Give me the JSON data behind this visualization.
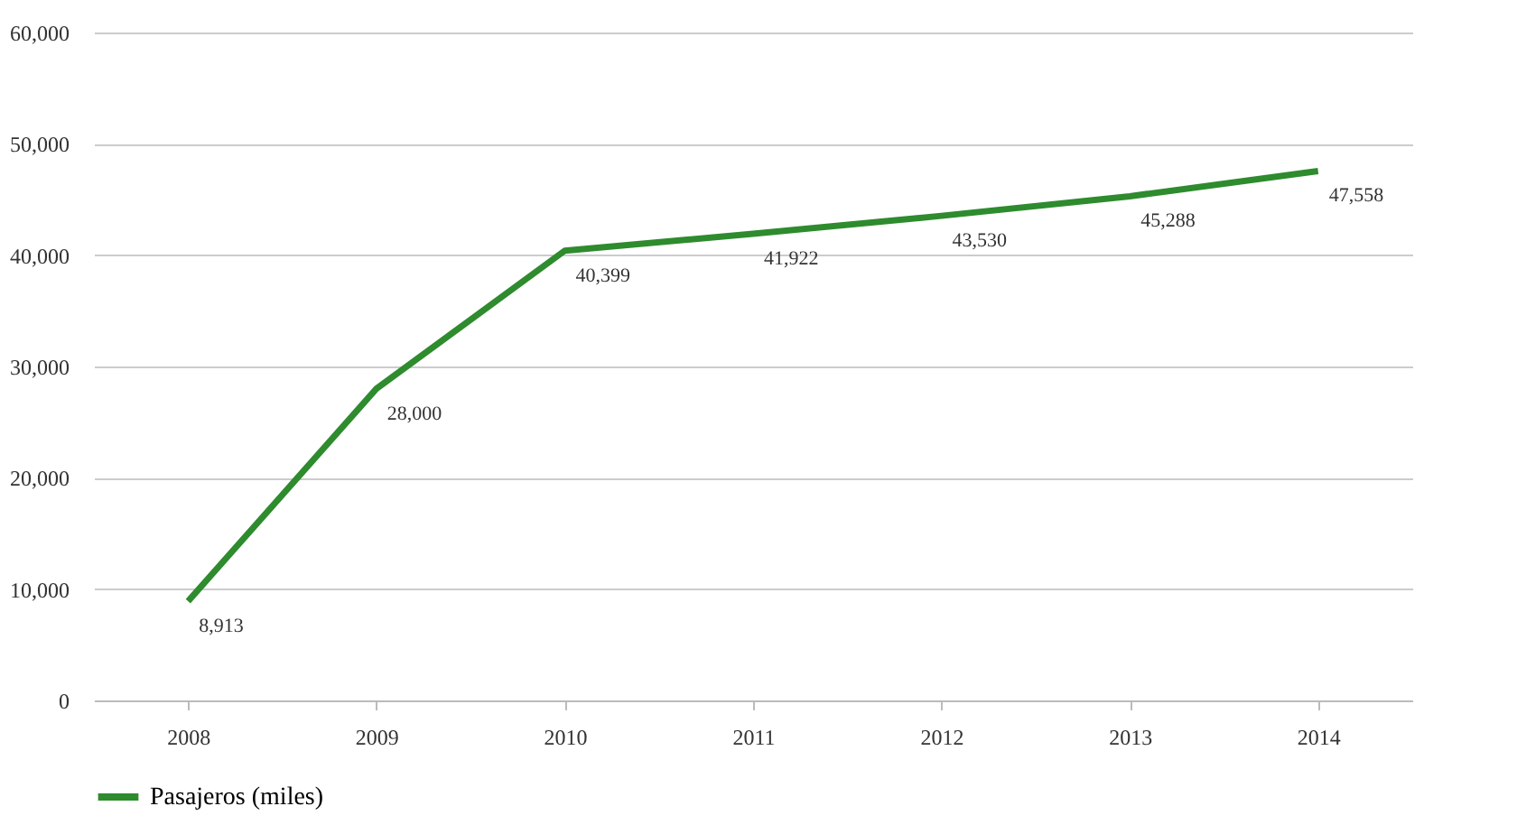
{
  "chart_data": {
    "type": "line",
    "categories": [
      "2008",
      "2009",
      "2010",
      "2011",
      "2012",
      "2013",
      "2014"
    ],
    "series": [
      {
        "name": "Pasajeros (miles)",
        "color": "#2e8b2e",
        "values": [
          8913,
          28000,
          40399,
          41922,
          43530,
          45288,
          47558
        ],
        "value_labels": [
          "8,913",
          "28,000",
          "40,399",
          "41,922",
          "43,530",
          "45,288",
          "47,558"
        ]
      }
    ],
    "ylim": [
      0,
      60000
    ],
    "yticks": [
      0,
      {
        "value": 10000,
        "label": "10,000"
      },
      {
        "value": 20000,
        "label": "20,000"
      },
      {
        "value": 30000,
        "label": "30,000"
      },
      {
        "value": 40000,
        "label": "40,000"
      },
      {
        "value": 50000,
        "label": "50,000"
      },
      {
        "value": 60000,
        "label": "60,000"
      }
    ],
    "grid": "y",
    "legend": "bottom",
    "marker": "none",
    "line_style": "solid"
  }
}
